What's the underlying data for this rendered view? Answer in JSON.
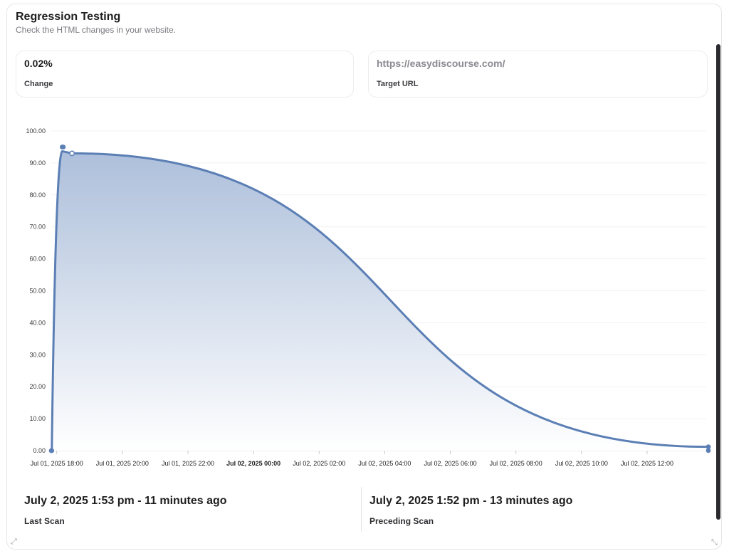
{
  "header": {
    "title": "Regression Testing",
    "subtitle": "Check the HTML changes in your website."
  },
  "stats": {
    "change": {
      "value": "0.02%",
      "label": "Change"
    },
    "target": {
      "value": "https://easydiscourse.com/",
      "label": "Target URL"
    }
  },
  "scans": {
    "last": {
      "when": "July 2, 2025 1:53 pm - 11 minutes ago",
      "label": "Last Scan"
    },
    "preceding": {
      "when": "July 2, 2025 1:52 pm - 13 minutes ago",
      "label": "Preceding Scan"
    }
  },
  "icons": {
    "resize_left": "expand-icon",
    "resize_right": "resize-icon"
  },
  "colors": {
    "line": "#5b7fb5",
    "fill_top": "#a9bcd9",
    "fill_bottom": "#ffffff"
  },
  "chart_data": {
    "type": "area",
    "title": "",
    "xlabel": "",
    "ylabel": "",
    "ylim": [
      0,
      100
    ],
    "y_ticks": [
      "100.00",
      "90.00",
      "80.00",
      "70.00",
      "60.00",
      "50.00",
      "40.00",
      "30.00",
      "20.00",
      "10.00",
      "0.00"
    ],
    "x_ticks": [
      "Jul 01, 2025 18:00",
      "Jul 01, 2025 20:00",
      "Jul 01, 2025 22:00",
      "Jul 02, 2025 00:00",
      "Jul 02, 2025 02:00",
      "Jul 02, 2025 04:00",
      "Jul 02, 2025 06:00",
      "Jul 02, 2025 08:00",
      "Jul 02, 2025 10:00",
      "Jul 02, 2025 12:00"
    ],
    "x_ticks_bold": [
      "Jul 02, 2025 00:00"
    ],
    "x_range": [
      "Jul 01, 2025 17:50",
      "Jul 02, 2025 13:52"
    ],
    "grid": true,
    "series": [
      {
        "x": [
          "Jul 01, 2025 17:50",
          "Jul 01, 2025 17:51",
          "Jul 01, 2025 18:10",
          "Jul 01, 2025 18:12",
          "Jul 01, 2025 18:28",
          "Jul 02, 2025 13:52",
          "Jul 02, 2025 13:52"
        ],
        "y": [
          0,
          0,
          95,
          95,
          93,
          1.2,
          0.02
        ]
      }
    ]
  }
}
